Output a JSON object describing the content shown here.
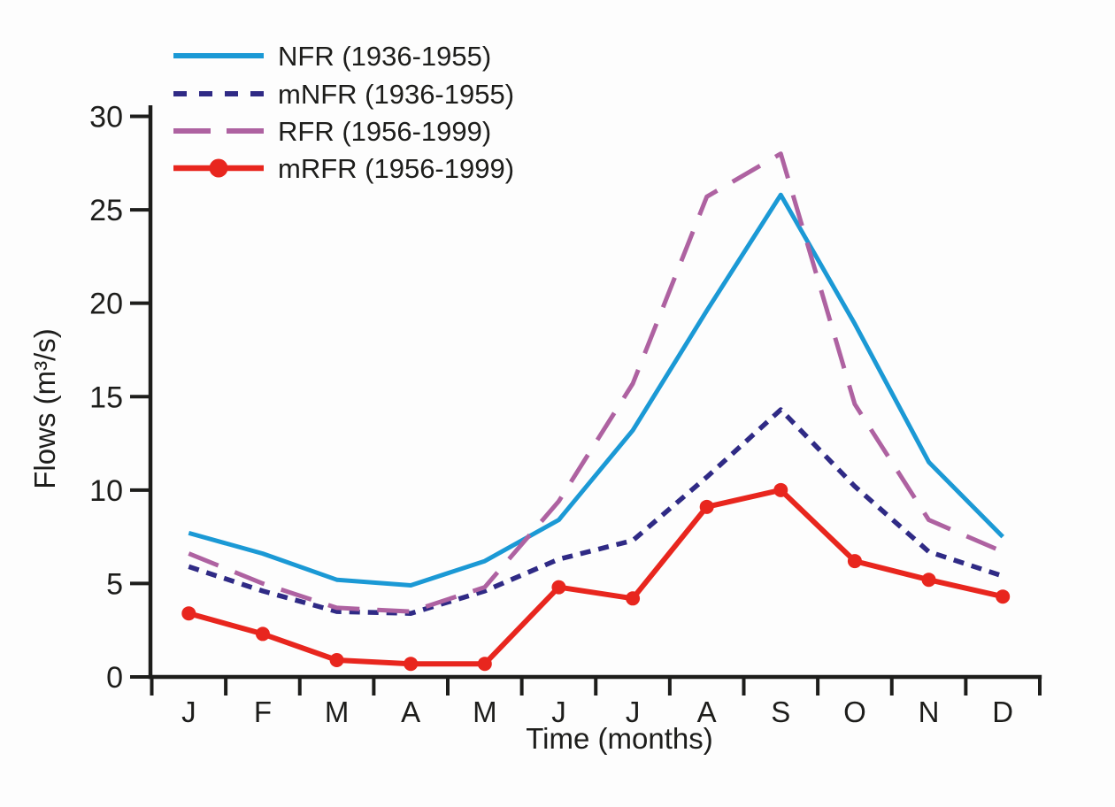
{
  "figure": {
    "background": "#fdfdfd",
    "axis_color": "#1d1d1b",
    "text_color": "#1d1d1b"
  },
  "chart_data": {
    "type": "line",
    "title": "",
    "xlabel": "Time (months)",
    "ylabel": "Flows (m³/s)",
    "categories": [
      "J",
      "F",
      "M",
      "A",
      "M",
      "J",
      "J",
      "A",
      "S",
      "O",
      "N",
      "D"
    ],
    "y_ticks": [
      0,
      5,
      10,
      15,
      20,
      25,
      30
    ],
    "y_tick_labels": [
      "0",
      "5",
      "10",
      "15",
      "20",
      "25",
      "30"
    ],
    "ylim": [
      0,
      30
    ],
    "grid": false,
    "legend_position": "top-left",
    "series": [
      {
        "name": "NFR (1936-1955)",
        "color": "#1b99d5",
        "style": "solid",
        "marker": "none",
        "values": [
          7.7,
          6.6,
          5.2,
          4.9,
          6.2,
          8.4,
          13.2,
          19.6,
          25.8,
          18.9,
          11.5,
          7.5
        ]
      },
      {
        "name": "mNFR (1936-1955)",
        "color": "#2f2a85",
        "style": "dashed",
        "marker": "none",
        "values": [
          5.9,
          4.6,
          3.5,
          3.4,
          4.6,
          6.3,
          7.3,
          10.7,
          14.3,
          10.2,
          6.7,
          5.4
        ]
      },
      {
        "name": "RFR (1956-1999)",
        "color": "#ae62a1",
        "style": "long-dash",
        "marker": "none",
        "values": [
          6.6,
          5.0,
          3.7,
          3.5,
          4.8,
          9.4,
          15.7,
          25.7,
          28.0,
          14.6,
          8.4,
          6.7
        ]
      },
      {
        "name": "mRFR (1956-1999)",
        "color": "#e8261e",
        "style": "solid",
        "marker": "circle",
        "values": [
          3.4,
          2.3,
          0.9,
          0.7,
          0.7,
          4.8,
          4.2,
          9.1,
          10.0,
          6.2,
          5.2,
          4.3
        ]
      }
    ]
  }
}
